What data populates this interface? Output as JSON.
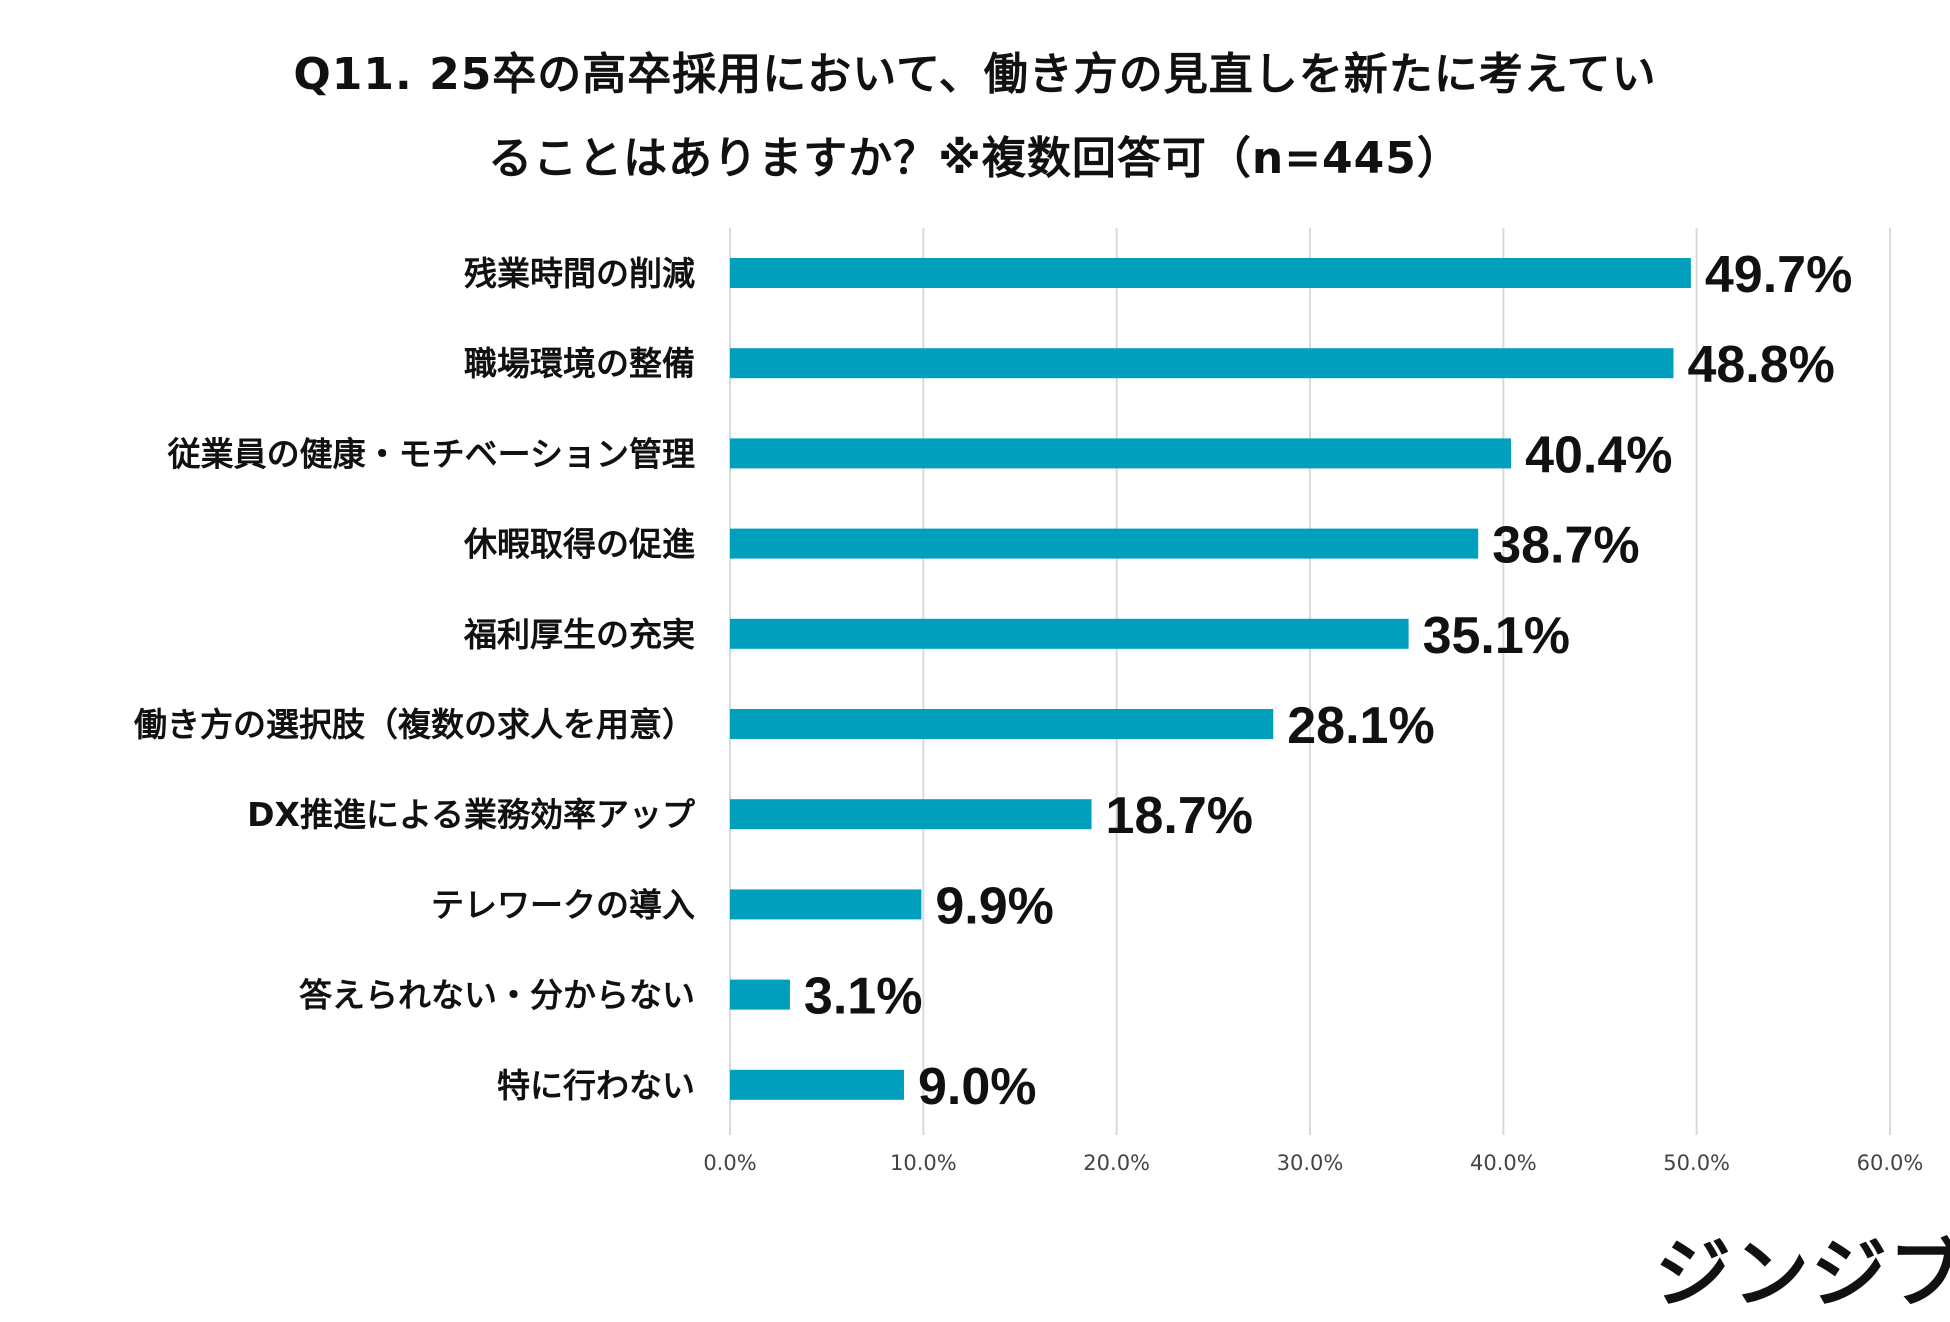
{
  "chart_data": {
    "type": "bar",
    "orientation": "horizontal",
    "title_lines": [
      "Q11. 25卒の高卒採用において、働き方の見直しを新たに考えてい",
      "ることはありますか？※複数回答可（n=445）"
    ],
    "categories": [
      "残業時間の削減",
      "職場環境の整備",
      "従業員の健康・モチベーション管理",
      "休暇取得の促進",
      "福利厚生の充実",
      "働き方の選択肢（複数の求人を用意）",
      "DX推進による業務効率アップ",
      "テレワークの導入",
      "答えられない・分からない",
      "特に行わない"
    ],
    "values": [
      49.7,
      48.8,
      40.4,
      38.7,
      35.1,
      28.1,
      18.7,
      9.9,
      3.1,
      9.0
    ],
    "value_labels": [
      "49.7%",
      "48.8%",
      "40.4%",
      "38.7%",
      "35.1%",
      "28.1%",
      "18.7%",
      "9.9%",
      "3.1%",
      "9.0%"
    ],
    "x_ticks": [
      0,
      10,
      20,
      30,
      40,
      50,
      60
    ],
    "x_tick_labels": [
      "0.0%",
      "10.0%",
      "20.0%",
      "30.0%",
      "40.0%",
      "50.0%",
      "60.0%"
    ],
    "xlim": [
      0,
      60
    ],
    "xlabel": "",
    "ylabel": "",
    "grid": "vertical",
    "bar_color": "#009fbd",
    "grid_color": "#d9d9d9"
  },
  "brand": {
    "logo_text": "ジンジブ"
  }
}
